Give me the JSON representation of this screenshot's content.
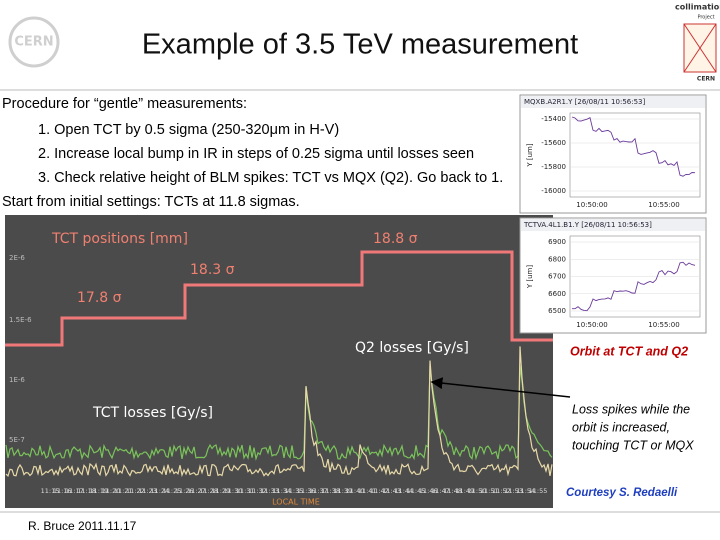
{
  "header": {
    "title": "Example of 3.5 TeV measurement",
    "logo_left": "CERN",
    "logo_right": [
      "collimation",
      "Project",
      "CERN"
    ]
  },
  "procedure": {
    "intro": "Procedure for “gentle” measurements:",
    "steps": [
      "1. Open TCT by 0.5 sigma (250-320μm in H-V)",
      "2. Increase local bump in IR in steps of 0.25 sigma until losses seen",
      "3. Check relative height of BLM spikes: TCT vs MQX (Q2). Go back to 1."
    ],
    "start": "Start from initial settings: TCTs at 11.8 sigmas."
  },
  "main_plot": {
    "labels": {
      "tct_positions": "TCT positions [mm]",
      "sigma_high": "18.8 σ",
      "sigma_mid": "18.3 σ",
      "sigma_low": "17.8 σ",
      "q2_losses": "Q2 losses [Gy/s]",
      "tct_losses": "TCT losses [Gy/s]",
      "x_axis": "LOCAL TIME"
    },
    "yticks": [
      "2E-6",
      "1.5E-6",
      "1E-6",
      "5E-7"
    ],
    "xticks": [
      "11:15",
      "11:16",
      "11:17",
      "11:18",
      "11:19",
      "11:20",
      "11:21",
      "11:22",
      "11:23",
      "11:24",
      "11:25",
      "11:26",
      "11:27",
      "11:28",
      "11:29",
      "11:30",
      "11:31",
      "11:32",
      "11:33",
      "11:34",
      "11:35",
      "11:36",
      "11:37",
      "11:38",
      "11:39",
      "11:40",
      "11:41",
      "11:42",
      "11:43",
      "11:44",
      "11:45",
      "11:46",
      "11:47",
      "11:48",
      "11:49",
      "11:50",
      "11:51",
      "11:52",
      "11:53",
      "11:54",
      "11:55"
    ]
  },
  "orbit_plots": [
    {
      "title": "MQXB.A2R1.Y [26/08/11 10:56:53]",
      "y_label": "Y [um]",
      "yticks": [
        "-15400",
        "-15600",
        "-15800",
        "-16000"
      ],
      "xticks": [
        "10:50:00",
        "10:55:00"
      ]
    },
    {
      "title": "TCTVA.4L1.B1.Y [26/08/11 10:56:53]",
      "y_label": "Y [um]",
      "yticks": [
        "6900",
        "6800",
        "6700",
        "6600",
        "6500"
      ],
      "xticks": [
        "10:50:00",
        "10:55:00"
      ]
    }
  ],
  "annotations": {
    "orbit": "Orbit at TCT and Q2",
    "loss_spikes": [
      "Loss spikes while the",
      "orbit is increased,",
      "touching TCT or MQX"
    ],
    "courtesy": "Courtesy S. Redaelli"
  },
  "footer": {
    "author": "R. Bruce 2011.11.17"
  }
}
